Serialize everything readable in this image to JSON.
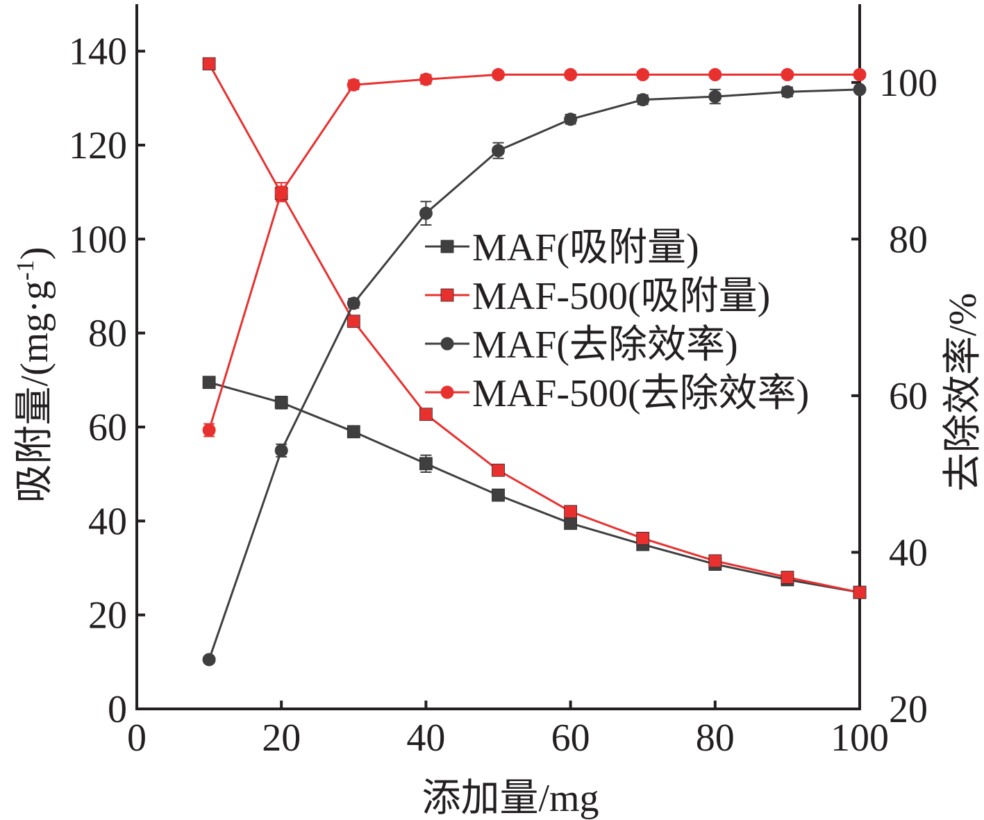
{
  "chart_data": {
    "type": "line",
    "xlabel": "添加量/mg",
    "ylabel_left": "吸附量/(mg·g",
    "ylabel_left_sup": "-1",
    "ylabel_left_end": ")",
    "ylabel_right": "去除效率/%",
    "xlim": [
      0,
      100
    ],
    "ylim_left": [
      0,
      150
    ],
    "ylim_right": [
      20,
      110
    ],
    "xticks": [
      0,
      20,
      40,
      60,
      80,
      100
    ],
    "yticks_left": [
      0,
      20,
      40,
      60,
      80,
      100,
      120,
      140
    ],
    "yticks_right": [
      20,
      40,
      60,
      80,
      100
    ],
    "x": [
      10,
      20,
      30,
      40,
      50,
      60,
      70,
      80,
      90,
      100
    ],
    "legend_position": "center-right",
    "series": [
      {
        "name": "MAF(吸附量)",
        "axis": "left",
        "marker": "square",
        "color": "#3f3f3f",
        "values": [
          69.5,
          65.2,
          59.0,
          52.2,
          45.5,
          39.5,
          35.0,
          30.8,
          27.5,
          24.8
        ],
        "errors": [
          1.0,
          1.3,
          1.0,
          1.8,
          1.0,
          1.0,
          0.8,
          0.8,
          0.8,
          0.6
        ]
      },
      {
        "name": "MAF-500(吸附量)",
        "axis": "left",
        "marker": "square",
        "color": "#e8312f",
        "values": [
          137.3,
          109.7,
          82.5,
          62.7,
          50.8,
          42.0,
          36.3,
          31.5,
          28.0,
          24.8
        ],
        "errors": [
          1.0,
          1.5,
          1.0,
          0.8,
          1.0,
          0.8,
          0.8,
          0.6,
          0.6,
          0.6
        ]
      },
      {
        "name": "MAF(去除效率)",
        "axis": "right",
        "marker": "circle",
        "color": "#3f3f3f",
        "values": [
          26.3,
          53.0,
          71.8,
          83.3,
          91.3,
          95.3,
          97.8,
          98.2,
          98.8,
          99.1
        ],
        "errors": [
          0.4,
          0.8,
          0.6,
          1.5,
          1.0,
          0.6,
          0.6,
          0.9,
          0.6,
          0.4
        ]
      },
      {
        "name": "MAF-500(去除效率)",
        "axis": "right",
        "marker": "circle",
        "color": "#e8312f",
        "values": [
          55.6,
          86.0,
          99.7,
          100.4,
          101.0,
          101.0,
          101.0,
          101.0,
          101.0,
          101.0
        ],
        "errors": [
          0.8,
          1.2,
          0.6,
          0.6,
          0.4,
          0.4,
          0.4,
          0.4,
          0.4,
          0.4
        ]
      }
    ]
  }
}
